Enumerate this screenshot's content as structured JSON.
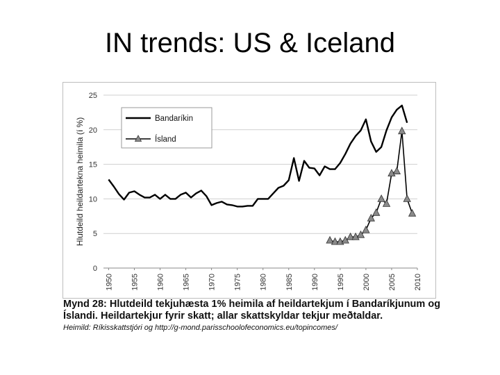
{
  "slide": {
    "title": "IN trends: US & Iceland"
  },
  "caption": {
    "line1": "Mynd 28: Hlutdeild tekjuhæsta 1% heimila af heildartekjum í Bandaríkjunum og",
    "line2": "Íslandi. Heildartekjur fyrir skatt; allar skattskyldar tekjur meðtaldar.",
    "source": "Heimild: Ríkisskattstjóri og http://g-mond.parisschoolofeconomics.eu/topincomes/"
  },
  "chart_data": {
    "type": "line",
    "title": "",
    "xlabel": "",
    "ylabel": "Hlutdeild heildartekna heimila (í %)",
    "xlim": [
      1949,
      2010
    ],
    "ylim": [
      0,
      25
    ],
    "yticks": [
      "0",
      "5",
      "10",
      "15",
      "20",
      "25"
    ],
    "xticks": [
      "1950",
      "1955",
      "1960",
      "1965",
      "1970",
      "1975",
      "1980",
      "1985",
      "1990",
      "1995",
      "2000",
      "2005",
      "2010"
    ],
    "grid": "horizontal",
    "legend": "top-left",
    "series": [
      {
        "name": "Bandaríkin",
        "color": "#000000",
        "marker": "none",
        "x": [
          1950,
          1951,
          1952,
          1953,
          1954,
          1955,
          1956,
          1957,
          1958,
          1959,
          1960,
          1961,
          1962,
          1963,
          1964,
          1965,
          1966,
          1967,
          1968,
          1969,
          1970,
          1971,
          1972,
          1973,
          1974,
          1975,
          1976,
          1977,
          1978,
          1979,
          1980,
          1981,
          1982,
          1983,
          1984,
          1985,
          1986,
          1987,
          1988,
          1989,
          1990,
          1991,
          1992,
          1993,
          1994,
          1995,
          1996,
          1997,
          1998,
          1999,
          2000,
          2001,
          2002,
          2003,
          2004,
          2005,
          2006,
          2007,
          2008
        ],
        "values": [
          12.8,
          11.8,
          10.7,
          9.9,
          10.9,
          11.1,
          10.6,
          10.2,
          10.2,
          10.6,
          10.0,
          10.6,
          10.0,
          10.0,
          10.6,
          10.9,
          10.2,
          10.8,
          11.2,
          10.4,
          9.1,
          9.4,
          9.6,
          9.2,
          9.1,
          8.9,
          8.9,
          9.0,
          9.0,
          10.0,
          10.0,
          10.0,
          10.8,
          11.6,
          11.9,
          12.7,
          15.9,
          12.6,
          15.5,
          14.5,
          14.4,
          13.4,
          14.7,
          14.3,
          14.3,
          15.2,
          16.5,
          18.0,
          19.1,
          19.9,
          21.5,
          18.3,
          16.8,
          17.5,
          19.9,
          21.8,
          22.9,
          23.5,
          21.0
        ]
      },
      {
        "name": "Ísland",
        "color": "#000000",
        "marker": "triangle",
        "marker_fill": "#8a8a8a",
        "x": [
          1993,
          1994,
          1995,
          1996,
          1997,
          1998,
          1999,
          2000,
          2001,
          2002,
          2003,
          2004,
          2005,
          2006,
          2007,
          2008,
          2009
        ],
        "values": [
          4.0,
          3.8,
          3.8,
          4.0,
          4.5,
          4.5,
          4.8,
          5.5,
          7.2,
          8.0,
          10.0,
          9.3,
          13.7,
          14.0,
          19.8,
          10.0,
          7.9
        ]
      }
    ]
  }
}
